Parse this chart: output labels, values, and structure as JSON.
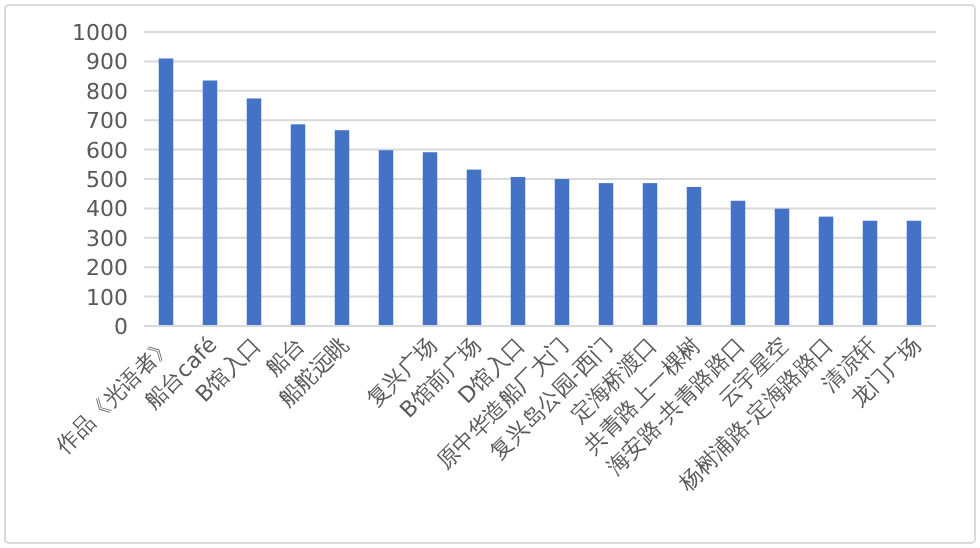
{
  "chart_data": {
    "type": "bar",
    "categories": [
      "作品《光语者》",
      "船台café",
      "B馆入口",
      "船台",
      "船舵远眺",
      null,
      "复兴广场",
      "B馆前广场",
      "D馆入口",
      "原中华造船厂大门",
      "复兴岛公园-西门",
      "定海桥渡口",
      "共青路上一棵树",
      "海安路-共青路路口",
      "云宇星空",
      "杨树浦路-定海路路口",
      "清凉轩",
      "龙门广场"
    ],
    "values": [
      910,
      835,
      774,
      686,
      666,
      598,
      591,
      532,
      507,
      500,
      486,
      486,
      473,
      426,
      399,
      372,
      358,
      358
    ],
    "color": "#4472c4",
    "ylim": [
      0,
      1000
    ],
    "yticks": [
      0,
      100,
      200,
      300,
      400,
      500,
      600,
      700,
      800,
      900,
      1000
    ],
    "grid": "y"
  }
}
